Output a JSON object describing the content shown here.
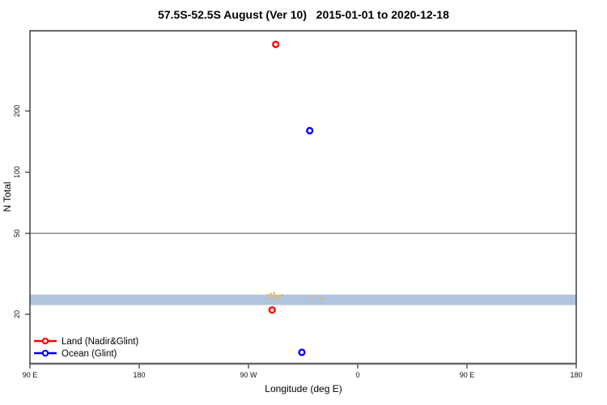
{
  "title": "57.5S-52.5S August (Ver 10)   2015-01-01 to 2020-12-18",
  "axes": {
    "x_label": "Longitude (deg E)",
    "y_label": "N Total"
  },
  "legend": {
    "position": "bottom-left-inside",
    "items": [
      {
        "label": "Land (Nadir&Glint)",
        "color": "#FF0000",
        "marker": "open-circle-on-line"
      },
      {
        "label": "Ocean (Glint)",
        "color": "#0000FF",
        "marker": "open-circle-on-line"
      }
    ]
  },
  "chart_data": {
    "type": "scatter",
    "title": "57.5S-52.5S August (Ver 10)   2015-01-01 to 2020-12-18",
    "xlabel": "Longitude (deg E)",
    "ylabel": "N Total",
    "y_scale": "log",
    "ylim": [
      11.5,
      500
    ],
    "y_ticks": [
      20,
      50,
      100,
      200
    ],
    "x_axis_note": "axis spans 450 deg of longitude: 90E eastward across the dateline to 180",
    "x_ticks": [
      {
        "axis_deg": 90,
        "label": "90 E"
      },
      {
        "axis_deg": 180,
        "label": "180"
      },
      {
        "axis_deg": 270,
        "label": "90 W"
      },
      {
        "axis_deg": 360,
        "label": "0"
      },
      {
        "axis_deg": 450,
        "label": "90 E"
      },
      {
        "axis_deg": 540,
        "label": "180"
      }
    ],
    "grid": "off",
    "reference_line": {
      "y": 50,
      "color": "#8a8a8a"
    },
    "band": {
      "y_low": 22.2,
      "y_high": 25.0,
      "color": "#B0C4DE"
    },
    "series": [
      {
        "name": "Land (Nadir&Glint)",
        "color": "#FF0000",
        "marker": "open-circle",
        "points": [
          {
            "axis_deg": 292.5,
            "longitude_label": "67.5 W",
            "n_total": 425
          },
          {
            "axis_deg": 289.5,
            "longitude_label": "70.5 W",
            "n_total": 21
          }
        ]
      },
      {
        "name": "Ocean (Glint)",
        "color": "#0000FF",
        "marker": "open-circle",
        "points": [
          {
            "axis_deg": 320.5,
            "longitude_label": "39.5 W",
            "n_total": 160
          },
          {
            "axis_deg": 314.0,
            "longitude_label": "46 W",
            "n_total": 13
          }
        ]
      },
      {
        "name": "unlabeled-orange-cluster",
        "color": "#EDB245",
        "marker": "small-dot",
        "points": [
          {
            "axis_deg": 286.0,
            "n_total": 24.9
          },
          {
            "axis_deg": 288.5,
            "n_total": 25.2
          },
          {
            "axis_deg": 291.0,
            "n_total": 25.4
          },
          {
            "axis_deg": 293.0,
            "n_total": 24.7
          },
          {
            "axis_deg": 295.5,
            "n_total": 24.3
          },
          {
            "axis_deg": 290.0,
            "n_total": 24.1
          },
          {
            "axis_deg": 287.5,
            "n_total": 23.9
          },
          {
            "axis_deg": 297.5,
            "n_total": 24.9
          },
          {
            "axis_deg": 294.0,
            "n_total": 23.8
          },
          {
            "axis_deg": 322.5,
            "n_total": 24.3
          },
          {
            "axis_deg": 330.0,
            "n_total": 23.9
          }
        ]
      }
    ]
  },
  "colors": {
    "land": "#FF0000",
    "ocean": "#0000FF",
    "band": "#B0C4DE",
    "reference_line": "#8a8a8a",
    "plot_border": "#333333",
    "bottom_axis": "#666666",
    "cluster": "#EDB245"
  }
}
